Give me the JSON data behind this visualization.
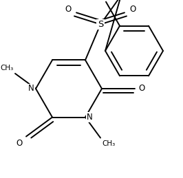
{
  "background": "#ffffff",
  "line_color": "#000000",
  "line_width": 1.4,
  "figsize": [
    2.66,
    2.59
  ],
  "dpi": 100,
  "xlim": [
    0,
    266
  ],
  "ylim": [
    0,
    259
  ]
}
